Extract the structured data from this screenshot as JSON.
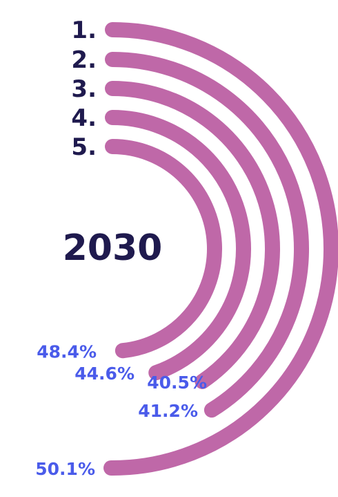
{
  "chart_data": {
    "type": "radial-bar",
    "center_label": "2030",
    "categories": [
      "1.",
      "2.",
      "3.",
      "4.",
      "5."
    ],
    "values": [
      50.1,
      41.2,
      40.5,
      44.6,
      48.4
    ],
    "value_labels": [
      "50.1%",
      "41.2%",
      "40.5%",
      "44.6%",
      "48.4%"
    ],
    "max_value": 100,
    "colors": {
      "arc": "#bf68a8",
      "rank_text": "#1f1a4e",
      "center_text": "#1f1a4e",
      "value_text": "#4a5bea"
    }
  }
}
